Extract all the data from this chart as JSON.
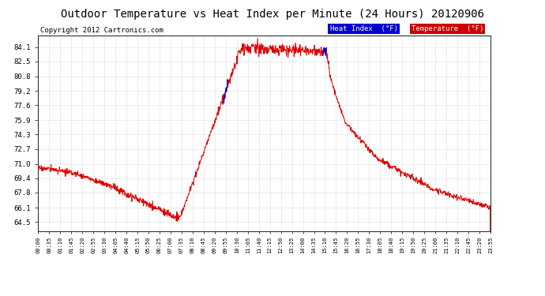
{
  "title": "Outdoor Temperature vs Heat Index per Minute (24 Hours) 20120906",
  "copyright": "Copyright 2012 Cartronics.com",
  "ylabel_ticks": [
    64.5,
    66.1,
    67.8,
    69.4,
    71.0,
    72.7,
    74.3,
    75.9,
    77.6,
    79.2,
    80.8,
    82.5,
    84.1
  ],
  "ylim": [
    63.5,
    85.4
  ],
  "xtick_labels": [
    "00:00",
    "00:35",
    "01:10",
    "01:45",
    "02:20",
    "02:55",
    "03:30",
    "04:05",
    "04:40",
    "05:15",
    "05:50",
    "06:25",
    "07:00",
    "07:35",
    "08:10",
    "08:45",
    "09:20",
    "09:55",
    "10:30",
    "11:05",
    "11:40",
    "12:15",
    "12:50",
    "13:25",
    "14:00",
    "14:35",
    "15:10",
    "15:45",
    "16:20",
    "16:55",
    "17:30",
    "18:05",
    "18:40",
    "19:15",
    "19:50",
    "20:25",
    "21:00",
    "21:35",
    "22:10",
    "22:45",
    "23:20",
    "23:55"
  ],
  "title_fontsize": 10,
  "copyright_fontsize": 6.5,
  "legend_heat_index_bg": "#0000cc",
  "legend_temp_bg": "#cc0000",
  "legend_heat_index_text": "Heat Index  (°F)",
  "legend_temp_text": "Temperature  (°F)",
  "temp_color": "#dd0000",
  "heat_index_color": "#0000dd",
  "background_color": "#ffffff",
  "grid_color": "#bbbbbb",
  "grid_style": ":"
}
